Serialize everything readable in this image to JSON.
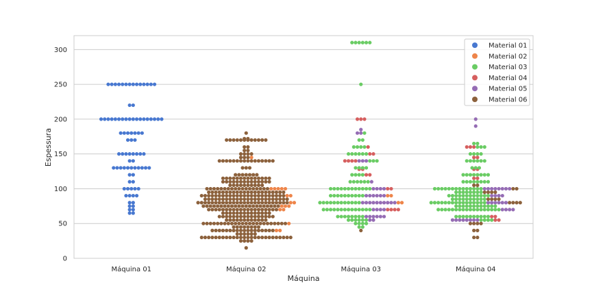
{
  "chart_data": {
    "type": "scatter",
    "subtype": "swarm",
    "title": "",
    "xlabel": "Máquina",
    "ylabel": "Espessura",
    "categories": [
      "Máquina 01",
      "Máquina 02",
      "Máquina 03",
      "Máquina 04"
    ],
    "ylim": [
      0,
      320
    ],
    "yticks": [
      0,
      50,
      100,
      150,
      200,
      250,
      300
    ],
    "grid": "horizontal",
    "legend_position": "top-right",
    "hue": [
      {
        "name": "Material 01",
        "color": "#4878d0"
      },
      {
        "name": "Material 02",
        "color": "#ee854a"
      },
      {
        "name": "Material 03",
        "color": "#6acc64"
      },
      {
        "name": "Material 04",
        "color": "#d65f5f"
      },
      {
        "name": "Material 05",
        "color": "#956cb4"
      },
      {
        "name": "Material 06",
        "color": "#8c613c"
      }
    ],
    "groups": [
      {
        "category": "Máquina 01",
        "points": [
          {
            "y": 250,
            "material": 0,
            "count": 14
          },
          {
            "y": 220,
            "material": 0,
            "count": 2
          },
          {
            "y": 200,
            "material": 0,
            "count": 18
          },
          {
            "y": 180,
            "material": 0,
            "count": 7
          },
          {
            "y": 170,
            "material": 0,
            "count": 3
          },
          {
            "y": 150,
            "material": 0,
            "count": 8
          },
          {
            "y": 140,
            "material": 0,
            "count": 2
          },
          {
            "y": 130,
            "material": 0,
            "count": 11
          },
          {
            "y": 120,
            "material": 0,
            "count": 2
          },
          {
            "y": 110,
            "material": 0,
            "count": 2
          },
          {
            "y": 100,
            "material": 0,
            "count": 5
          },
          {
            "y": 90,
            "material": 0,
            "count": 4
          },
          {
            "y": 80,
            "material": 0,
            "count": 2
          },
          {
            "y": 75,
            "material": 0,
            "count": 2
          },
          {
            "y": 70,
            "material": 0,
            "count": 2
          },
          {
            "y": 65,
            "material": 0,
            "count": 2
          }
        ]
      },
      {
        "category": "Máquina 02",
        "points": [
          {
            "y": 180,
            "material": 5,
            "count": 1
          },
          {
            "y": 172,
            "material": 5,
            "count": 2
          },
          {
            "y": 170,
            "material": 5,
            "count": 12
          },
          {
            "y": 160,
            "material": 5,
            "count": 2
          },
          {
            "y": 155,
            "material": 5,
            "count": 2
          },
          {
            "y": 150,
            "material": 5,
            "count": 4
          },
          {
            "y": 145,
            "material": 5,
            "count": 3
          },
          {
            "y": 145,
            "material": 1,
            "count": 1
          },
          {
            "y": 140,
            "material": 5,
            "count": 16
          },
          {
            "y": 130,
            "material": 5,
            "count": 3
          },
          {
            "y": 120,
            "material": 5,
            "count": 7
          },
          {
            "y": 115,
            "material": 5,
            "count": 14
          },
          {
            "y": 110,
            "material": 5,
            "count": 14
          },
          {
            "y": 105,
            "material": 5,
            "count": 10
          },
          {
            "y": 100,
            "material": 5,
            "count": 18
          },
          {
            "y": 100,
            "material": 1,
            "count": 5
          },
          {
            "y": 95,
            "material": 5,
            "count": 22
          },
          {
            "y": 90,
            "material": 5,
            "count": 24
          },
          {
            "y": 90,
            "material": 1,
            "count": 2
          },
          {
            "y": 85,
            "material": 5,
            "count": 24
          },
          {
            "y": 80,
            "material": 5,
            "count": 26
          },
          {
            "y": 80,
            "material": 1,
            "count": 2
          },
          {
            "y": 75,
            "material": 5,
            "count": 22
          },
          {
            "y": 75,
            "material": 1,
            "count": 3
          },
          {
            "y": 70,
            "material": 5,
            "count": 20
          },
          {
            "y": 70,
            "material": 1,
            "count": 2
          },
          {
            "y": 65,
            "material": 5,
            "count": 14
          },
          {
            "y": 60,
            "material": 5,
            "count": 16
          },
          {
            "y": 55,
            "material": 5,
            "count": 12
          },
          {
            "y": 50,
            "material": 5,
            "count": 24
          },
          {
            "y": 50,
            "material": 1,
            "count": 1
          },
          {
            "y": 45,
            "material": 5,
            "count": 8
          },
          {
            "y": 40,
            "material": 5,
            "count": 18
          },
          {
            "y": 40,
            "material": 1,
            "count": 2
          },
          {
            "y": 35,
            "material": 5,
            "count": 6
          },
          {
            "y": 30,
            "material": 5,
            "count": 26
          },
          {
            "y": 25,
            "material": 5,
            "count": 4
          },
          {
            "y": 15,
            "material": 5,
            "count": 1
          }
        ]
      },
      {
        "category": "Máquina 03",
        "points": [
          {
            "y": 310,
            "material": 2,
            "count": 6
          },
          {
            "y": 250,
            "material": 2,
            "count": 1
          },
          {
            "y": 200,
            "material": 3,
            "count": 3
          },
          {
            "y": 185,
            "material": 4,
            "count": 1
          },
          {
            "y": 180,
            "material": 4,
            "count": 2
          },
          {
            "y": 180,
            "material": 2,
            "count": 1
          },
          {
            "y": 170,
            "material": 2,
            "count": 2
          },
          {
            "y": 160,
            "material": 2,
            "count": 4
          },
          {
            "y": 160,
            "material": 3,
            "count": 1
          },
          {
            "y": 150,
            "material": 2,
            "count": 6
          },
          {
            "y": 150,
            "material": 3,
            "count": 2
          },
          {
            "y": 140,
            "material": 3,
            "count": 4
          },
          {
            "y": 140,
            "material": 4,
            "count": 3
          },
          {
            "y": 140,
            "material": 2,
            "count": 3
          },
          {
            "y": 130,
            "material": 2,
            "count": 4
          },
          {
            "y": 128,
            "material": 3,
            "count": 2
          },
          {
            "y": 120,
            "material": 2,
            "count": 4
          },
          {
            "y": 120,
            "material": 3,
            "count": 2
          },
          {
            "y": 110,
            "material": 2,
            "count": 6
          },
          {
            "y": 110,
            "material": 4,
            "count": 1
          },
          {
            "y": 100,
            "material": 2,
            "count": 12
          },
          {
            "y": 100,
            "material": 4,
            "count": 4
          },
          {
            "y": 100,
            "material": 3,
            "count": 2
          },
          {
            "y": 90,
            "material": 2,
            "count": 10
          },
          {
            "y": 90,
            "material": 4,
            "count": 6
          },
          {
            "y": 90,
            "material": 1,
            "count": 2
          },
          {
            "y": 80,
            "material": 2,
            "count": 12
          },
          {
            "y": 80,
            "material": 4,
            "count": 10
          },
          {
            "y": 80,
            "material": 1,
            "count": 2
          },
          {
            "y": 70,
            "material": 2,
            "count": 14
          },
          {
            "y": 70,
            "material": 4,
            "count": 4
          },
          {
            "y": 70,
            "material": 3,
            "count": 4
          },
          {
            "y": 60,
            "material": 2,
            "count": 8
          },
          {
            "y": 60,
            "material": 4,
            "count": 6
          },
          {
            "y": 55,
            "material": 2,
            "count": 6
          },
          {
            "y": 55,
            "material": 4,
            "count": 2
          },
          {
            "y": 50,
            "material": 2,
            "count": 4
          },
          {
            "y": 45,
            "material": 2,
            "count": 2
          },
          {
            "y": 40,
            "material": 5,
            "count": 1
          }
        ]
      },
      {
        "category": "Máquina 04",
        "points": [
          {
            "y": 200,
            "material": 4,
            "count": 1
          },
          {
            "y": 190,
            "material": 4,
            "count": 1
          },
          {
            "y": 165,
            "material": 2,
            "count": 2
          },
          {
            "y": 160,
            "material": 3,
            "count": 3
          },
          {
            "y": 160,
            "material": 2,
            "count": 3
          },
          {
            "y": 150,
            "material": 2,
            "count": 4
          },
          {
            "y": 145,
            "material": 3,
            "count": 2
          },
          {
            "y": 140,
            "material": 2,
            "count": 6
          },
          {
            "y": 130,
            "material": 2,
            "count": 3
          },
          {
            "y": 128,
            "material": 3,
            "count": 2
          },
          {
            "y": 120,
            "material": 2,
            "count": 8
          },
          {
            "y": 115,
            "material": 3,
            "count": 2
          },
          {
            "y": 110,
            "material": 2,
            "count": 8
          },
          {
            "y": 105,
            "material": 5,
            "count": 2
          },
          {
            "y": 100,
            "material": 2,
            "count": 14
          },
          {
            "y": 100,
            "material": 4,
            "count": 8
          },
          {
            "y": 100,
            "material": 5,
            "count": 2
          },
          {
            "y": 95,
            "material": 2,
            "count": 8
          },
          {
            "y": 95,
            "material": 5,
            "count": 4
          },
          {
            "y": 90,
            "material": 2,
            "count": 12
          },
          {
            "y": 90,
            "material": 4,
            "count": 4
          },
          {
            "y": 85,
            "material": 2,
            "count": 10
          },
          {
            "y": 85,
            "material": 5,
            "count": 4
          },
          {
            "y": 80,
            "material": 2,
            "count": 16
          },
          {
            "y": 80,
            "material": 4,
            "count": 6
          },
          {
            "y": 80,
            "material": 5,
            "count": 4
          },
          {
            "y": 75,
            "material": 2,
            "count": 12
          },
          {
            "y": 70,
            "material": 2,
            "count": 18
          },
          {
            "y": 70,
            "material": 4,
            "count": 4
          },
          {
            "y": 60,
            "material": 2,
            "count": 10
          },
          {
            "y": 60,
            "material": 3,
            "count": 2
          },
          {
            "y": 55,
            "material": 4,
            "count": 8
          },
          {
            "y": 55,
            "material": 2,
            "count": 4
          },
          {
            "y": 55,
            "material": 3,
            "count": 2
          },
          {
            "y": 50,
            "material": 5,
            "count": 4
          },
          {
            "y": 40,
            "material": 5,
            "count": 2
          },
          {
            "y": 30,
            "material": 5,
            "count": 2
          }
        ]
      }
    ]
  }
}
